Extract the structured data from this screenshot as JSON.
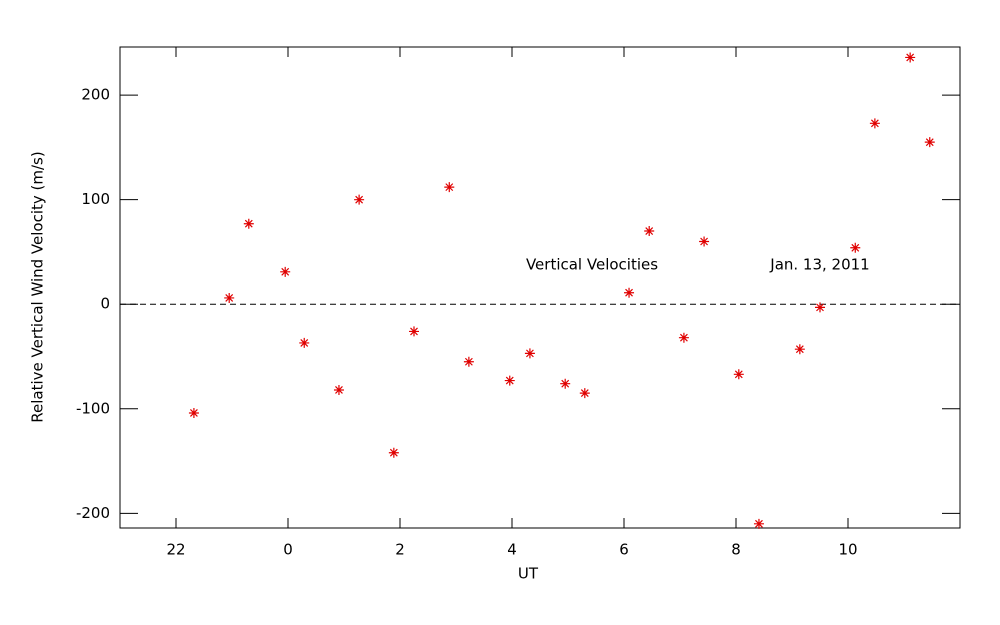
{
  "chart_data": {
    "type": "scatter",
    "xlabel": "UT",
    "ylabel": "Relative Vertical Wind Velocity (m/s)",
    "annotations": [
      "Vertical Velocities",
      "Jan. 13, 2011"
    ],
    "series": [
      {
        "name": "Vertical Velocities",
        "color": "#e00000",
        "x": [
          -1.68,
          -1.05,
          -0.7,
          -0.05,
          0.29,
          0.91,
          1.27,
          1.89,
          2.25,
          2.88,
          3.23,
          3.96,
          4.32,
          4.95,
          5.3,
          6.09,
          6.45,
          7.07,
          7.43,
          8.05,
          8.41,
          9.14,
          9.5,
          10.13,
          10.48,
          11.11,
          11.46
        ],
        "values": [
          -104,
          6,
          77,
          31,
          -37,
          -82,
          100,
          -142,
          -26,
          112,
          -55,
          -73,
          -47,
          -76,
          -85,
          11,
          70,
          -32,
          60,
          -67,
          -210,
          -43,
          -3,
          54,
          173,
          236,
          155
        ]
      }
    ],
    "xlim": [
      -3,
      12
    ],
    "ylim": [
      -214,
      246
    ],
    "xticks": [
      {
        "value": -2,
        "label": "22"
      },
      0,
      2,
      4,
      6,
      8,
      10
    ],
    "yticks": [
      -200,
      -100,
      0,
      100,
      200
    ],
    "reference_line": 0
  }
}
